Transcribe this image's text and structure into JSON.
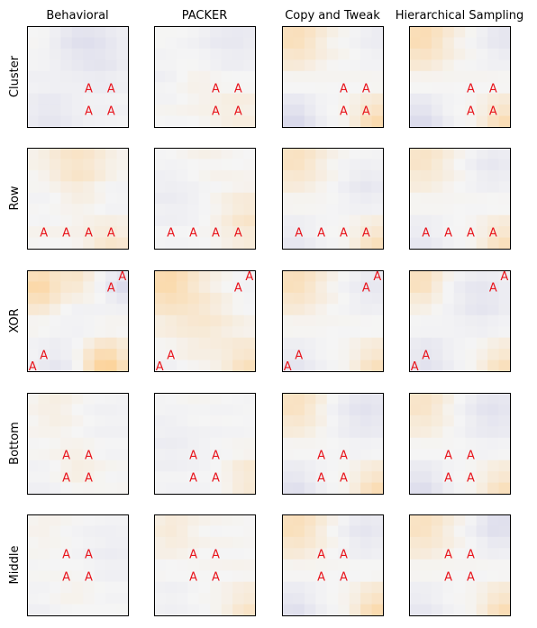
{
  "chart_data": {
    "type": "heatmap",
    "grid_size": 9,
    "columns": [
      "Behavioral",
      "PACKER",
      "Copy and Tweak",
      "Hierarchical Sampling"
    ],
    "rows": [
      "Cluster",
      "Row",
      "XOR",
      "Bottom",
      "Middle"
    ],
    "marker_text": "A",
    "colormap": {
      "negative": "#c8c8e4",
      "neutral": "#f5f5f5",
      "positive": "#ffc473"
    },
    "markers": {
      "Cluster": [
        [
          5,
          5
        ],
        [
          7,
          5
        ],
        [
          5,
          7
        ],
        [
          7,
          7
        ]
      ],
      "Row": [
        [
          1,
          7
        ],
        [
          3,
          7
        ],
        [
          5,
          7
        ],
        [
          7,
          7
        ]
      ],
      "XOR": [
        [
          8,
          0
        ],
        [
          7,
          1
        ],
        [
          1,
          7
        ],
        [
          0,
          8
        ]
      ],
      "Bottom": [
        [
          3,
          5
        ],
        [
          5,
          5
        ],
        [
          3,
          7
        ],
        [
          5,
          7
        ]
      ],
      "Middle": [
        [
          3,
          3
        ],
        [
          5,
          3
        ],
        [
          3,
          5
        ],
        [
          5,
          5
        ]
      ]
    },
    "patterns": {
      "Behavioral|Cluster": {
        "base": -0.08,
        "terms": [
          [
            4.5,
            0.5,
            4,
            -0.35
          ],
          [
            0.5,
            0.5,
            3,
            0.12
          ],
          [
            1.5,
            7.5,
            3,
            -0.25
          ],
          [
            6.5,
            3,
            3,
            -0.15
          ]
        ]
      },
      "PACKER|Cluster": {
        "base": 0.02,
        "terms": [
          [
            6.5,
            0.5,
            5,
            -0.3
          ],
          [
            0.5,
            4,
            3,
            -0.15
          ],
          [
            7,
            7,
            4,
            0.15
          ],
          [
            3,
            4,
            3,
            0.12
          ]
        ]
      },
      "Copy and Tweak|Cluster": {
        "base": 0.0,
        "terms": [
          [
            0.5,
            0.5,
            4,
            0.45
          ],
          [
            0.5,
            8,
            3,
            -0.6
          ],
          [
            8,
            8,
            3,
            0.5
          ],
          [
            8,
            0.5,
            3,
            -0.2
          ]
        ]
      },
      "Hierarchical Sampling|Cluster": {
        "base": 0.0,
        "terms": [
          [
            0.5,
            0.5,
            4,
            0.5
          ],
          [
            0.5,
            8,
            3,
            -0.55
          ],
          [
            8,
            8,
            3,
            0.45
          ],
          [
            8,
            0.5,
            3,
            -0.35
          ]
        ]
      },
      "Behavioral|Row": {
        "base": 0.05,
        "terms": [
          [
            4,
            1,
            4,
            0.3
          ],
          [
            1,
            4,
            3,
            -0.12
          ],
          [
            7.5,
            4,
            3,
            -0.15
          ],
          [
            7,
            8,
            3,
            0.25
          ]
        ]
      },
      "PACKER|Row": {
        "base": 0.0,
        "terms": [
          [
            1,
            4,
            4,
            -0.2
          ],
          [
            8,
            6,
            4,
            0.3
          ],
          [
            4,
            0.5,
            3,
            0.08
          ]
        ]
      },
      "Copy and Tweak|Row": {
        "base": 0.0,
        "terms": [
          [
            0.5,
            0.5,
            4,
            0.4
          ],
          [
            7,
            3,
            3,
            -0.3
          ],
          [
            8,
            8,
            3,
            0.4
          ],
          [
            0.5,
            8,
            3,
            -0.3
          ]
        ]
      },
      "Hierarchical Sampling|Row": {
        "base": 0.0,
        "terms": [
          [
            0.5,
            0.5,
            4,
            0.35
          ],
          [
            7,
            1,
            3,
            -0.3
          ],
          [
            8,
            8,
            3,
            0.4
          ],
          [
            0.5,
            8,
            3,
            -0.3
          ]
        ]
      },
      "Behavioral|XOR": {
        "base": 0.0,
        "terms": [
          [
            0.5,
            1,
            3,
            0.6
          ],
          [
            8,
            1,
            2,
            -0.55
          ],
          [
            6.5,
            8,
            3,
            0.7
          ],
          [
            2,
            8,
            3,
            -0.3
          ],
          [
            4,
            0.5,
            2,
            0.3
          ],
          [
            4,
            4,
            3,
            -0.1
          ]
        ]
      },
      "PACKER|XOR": {
        "base": 0.05,
        "terms": [
          [
            0.5,
            0.5,
            4,
            0.5
          ],
          [
            8,
            1,
            3,
            -0.15
          ],
          [
            4,
            4,
            4,
            0.2
          ],
          [
            8,
            8,
            3,
            0.35
          ],
          [
            0.5,
            8,
            2,
            -0.15
          ]
        ]
      },
      "Copy and Tweak|XOR": {
        "base": 0.0,
        "terms": [
          [
            0.5,
            0.5,
            4,
            0.45
          ],
          [
            7.5,
            1,
            3,
            -0.3
          ],
          [
            8,
            8,
            3,
            0.4
          ],
          [
            0.5,
            8,
            3,
            -0.35
          ]
        ]
      },
      "Hierarchical Sampling|XOR": {
        "base": 0.0,
        "terms": [
          [
            0.5,
            0.5,
            3,
            0.45
          ],
          [
            6,
            2,
            4,
            -0.35
          ],
          [
            8,
            8,
            3,
            0.4
          ],
          [
            1,
            7.5,
            3,
            -0.4
          ]
        ]
      },
      "Behavioral|Bottom": {
        "base": 0.0,
        "terms": [
          [
            2,
            1,
            3,
            0.15
          ],
          [
            7,
            2,
            4,
            -0.1
          ],
          [
            4,
            6,
            3,
            0.15
          ],
          [
            0.5,
            8,
            3,
            -0.12
          ]
        ]
      },
      "PACKER|Bottom": {
        "base": -0.03,
        "terms": [
          [
            1,
            4,
            4,
            -0.15
          ],
          [
            8,
            7,
            3,
            0.3
          ],
          [
            3,
            0.5,
            3,
            0.05
          ]
        ]
      },
      "Copy and Tweak|Bottom": {
        "base": 0.0,
        "terms": [
          [
            0.5,
            0.5,
            4,
            0.4
          ],
          [
            7,
            1,
            4,
            -0.4
          ],
          [
            8,
            8,
            3,
            0.45
          ],
          [
            0.5,
            8,
            3,
            -0.45
          ]
        ]
      },
      "Hierarchical Sampling|Bottom": {
        "base": 0.0,
        "terms": [
          [
            0.5,
            0.5,
            4,
            0.35
          ],
          [
            7,
            1,
            4,
            -0.4
          ],
          [
            8,
            8,
            3,
            0.4
          ],
          [
            0.5,
            8,
            3,
            -0.5
          ]
        ]
      },
      "Behavioral|Middle": {
        "base": -0.02,
        "terms": [
          [
            7,
            3,
            4,
            -0.15
          ],
          [
            1,
            1,
            3,
            0.1
          ],
          [
            4,
            6,
            3,
            0.1
          ],
          [
            0.5,
            8,
            2,
            -0.1
          ]
        ]
      },
      "PACKER|Middle": {
        "base": 0.02,
        "terms": [
          [
            1,
            1,
            3,
            0.2
          ],
          [
            8,
            8,
            3,
            0.3
          ],
          [
            1,
            7,
            3,
            -0.15
          ]
        ]
      },
      "Copy and Tweak|Middle": {
        "base": 0.0,
        "terms": [
          [
            0.5,
            0.5,
            4,
            0.45
          ],
          [
            7,
            1,
            3,
            -0.35
          ],
          [
            8,
            8,
            3,
            0.5
          ],
          [
            0.5,
            8,
            3,
            -0.45
          ]
        ]
      },
      "Hierarchical Sampling|Middle": {
        "base": 0.0,
        "terms": [
          [
            0.5,
            0.5,
            4,
            0.4
          ],
          [
            7.5,
            0.5,
            3,
            -0.5
          ],
          [
            8,
            8,
            3,
            0.45
          ],
          [
            0.5,
            8,
            3,
            -0.3
          ]
        ]
      }
    }
  }
}
